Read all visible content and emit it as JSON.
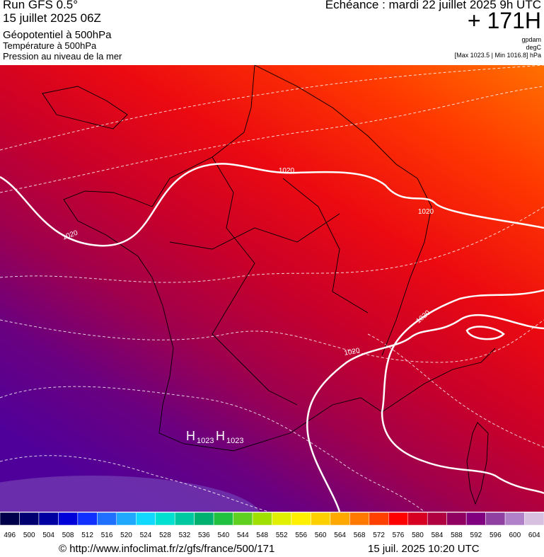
{
  "header": {
    "run": "Run GFS 0.5°",
    "run_date": "15 juillet 2025 06Z",
    "field1": "Géopotentiel à 500hPa",
    "field2": "Température à 500hPa",
    "field3": "Pression au niveau de la mer",
    "valid": "Echéance : mardi 22 juillet 2025 9h UTC",
    "lead": "+ 171H",
    "unit1": "gpdam",
    "unit2": "degC",
    "pressure_range": "[Max 1023.5 | Min 1016.8] hPa"
  },
  "map": {
    "isobar_labels": [
      "1020",
      "1020",
      "1020",
      "1020",
      "1020"
    ],
    "highs": [
      {
        "symbol": "H",
        "value": "1023"
      },
      {
        "symbol": "H",
        "value": "1023"
      }
    ]
  },
  "colorbar": [
    {
      "label": "496",
      "color": "#00004a"
    },
    {
      "label": "500",
      "color": "#000070"
    },
    {
      "label": "504",
      "color": "#0000a0"
    },
    {
      "label": "508",
      "color": "#0000d8"
    },
    {
      "label": "512",
      "color": "#1030ff"
    },
    {
      "label": "516",
      "color": "#2070ff"
    },
    {
      "label": "520",
      "color": "#20a8ff"
    },
    {
      "label": "524",
      "color": "#10d8ff"
    },
    {
      "label": "528",
      "color": "#00e0d0"
    },
    {
      "label": "532",
      "color": "#00c8a0"
    },
    {
      "label": "536",
      "color": "#00b070"
    },
    {
      "label": "540",
      "color": "#20c040"
    },
    {
      "label": "544",
      "color": "#60d020"
    },
    {
      "label": "548",
      "color": "#a0e000"
    },
    {
      "label": "552",
      "color": "#e0f000"
    },
    {
      "label": "556",
      "color": "#fff000"
    },
    {
      "label": "560",
      "color": "#ffd000"
    },
    {
      "label": "564",
      "color": "#ffa800"
    },
    {
      "label": "568",
      "color": "#ff7800"
    },
    {
      "label": "572",
      "color": "#ff4000"
    },
    {
      "label": "576",
      "color": "#ff0000"
    },
    {
      "label": "580",
      "color": "#d80020"
    },
    {
      "label": "584",
      "color": "#b00040"
    },
    {
      "label": "588",
      "color": "#900060"
    },
    {
      "label": "592",
      "color": "#800080"
    },
    {
      "label": "596",
      "color": "#9040a0"
    },
    {
      "label": "600",
      "color": "#b080c8"
    },
    {
      "label": "604",
      "color": "#d8c0e0"
    }
  ],
  "footer": {
    "source": "© http://www.infoclimat.fr/z/gfs/france/500/171",
    "timestamp": "15 juil. 2025 10:20 UTC"
  }
}
